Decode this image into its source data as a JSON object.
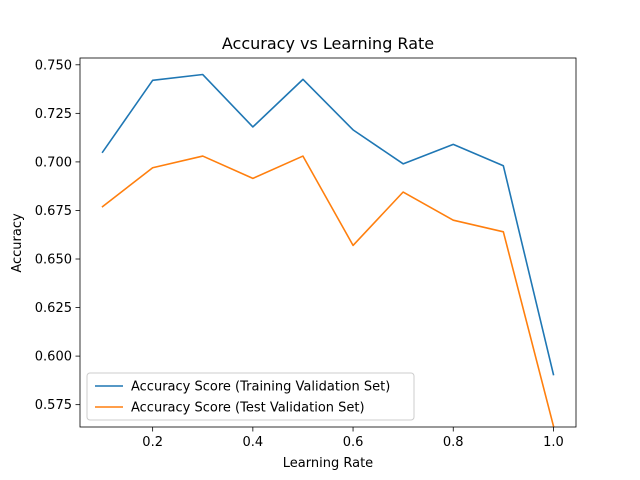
{
  "chart_data": {
    "type": "line",
    "title": "Accuracy vs Learning Rate",
    "xlabel": "Learning Rate",
    "ylabel": "Accuracy",
    "x": [
      0.1,
      0.2,
      0.3,
      0.4,
      0.5,
      0.6,
      0.7,
      0.8,
      0.9,
      1.0
    ],
    "xlim": [
      0.055,
      1.045
    ],
    "ylim": [
      0.5635,
      0.7535
    ],
    "xticks": [
      0.2,
      0.4,
      0.6,
      0.8,
      1.0
    ],
    "xtick_labels": [
      "0.2",
      "0.4",
      "0.6",
      "0.8",
      "1.0"
    ],
    "yticks": [
      0.575,
      0.6,
      0.625,
      0.65,
      0.675,
      0.7,
      0.725,
      0.75
    ],
    "ytick_labels": [
      "0.575",
      "0.600",
      "0.625",
      "0.650",
      "0.675",
      "0.700",
      "0.725",
      "0.750"
    ],
    "grid": false,
    "legend_position": "lower-left",
    "series": [
      {
        "name": "Accuracy Score (Training Validation Set)",
        "color": "#1f77b4",
        "values": [
          0.705,
          0.742,
          0.745,
          0.718,
          0.7425,
          0.7165,
          0.699,
          0.709,
          0.698,
          0.5905
        ]
      },
      {
        "name": "Accuracy Score (Test Validation Set)",
        "color": "#ff7f0e",
        "values": [
          0.677,
          0.697,
          0.703,
          0.6915,
          0.703,
          0.657,
          0.6845,
          0.67,
          0.664,
          0.564
        ]
      }
    ]
  }
}
